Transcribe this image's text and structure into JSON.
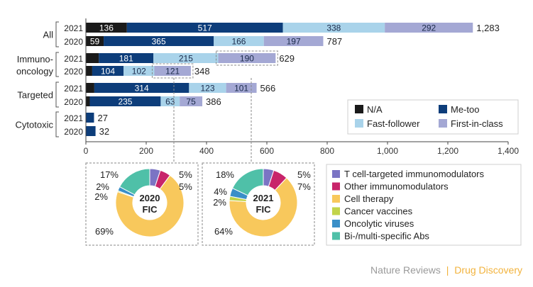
{
  "chart_data": [
    {
      "type": "bar",
      "orientation": "horizontal",
      "stacked": true,
      "groups": [
        {
          "label": "All",
          "rows": [
            {
              "year": "2021",
              "values": [
                136,
                517,
                338,
                292
              ],
              "total": "1,283"
            },
            {
              "year": "2020",
              "values": [
                59,
                365,
                166,
                197
              ],
              "total": "787"
            }
          ]
        },
        {
          "label": "Immuno-\noncology",
          "label_lines": [
            "Immuno-",
            "oncology"
          ],
          "rows": [
            {
              "year": "2021",
              "values": [
                43,
                181,
                215,
                190
              ],
              "total": "629"
            },
            {
              "year": "2020",
              "values": [
                21,
                104,
                102,
                121
              ],
              "total": "348"
            }
          ]
        },
        {
          "label": "Targeted",
          "rows": [
            {
              "year": "2021",
              "values": [
                28,
                314,
                123,
                101
              ],
              "total": "566"
            },
            {
              "year": "2020",
              "values": [
                13,
                235,
                63,
                75
              ],
              "total": "386"
            }
          ]
        },
        {
          "label": "Cytotoxic",
          "rows": [
            {
              "year": "2021",
              "values": [
                0,
                27,
                0,
                0
              ],
              "total": "27"
            },
            {
              "year": "2020",
              "values": [
                0,
                32,
                0,
                0
              ],
              "total": "32"
            }
          ]
        }
      ],
      "segment_labels_shown": [
        [
          [
            "136",
            "517",
            "338",
            "292"
          ],
          [
            "59",
            "365",
            "166",
            "197"
          ]
        ],
        [
          [
            "",
            "181",
            "215",
            "190"
          ],
          [
            "",
            "104",
            "102",
            "121"
          ]
        ],
        [
          [
            "",
            "314",
            "123",
            "101"
          ],
          [
            "",
            "235",
            "63",
            "75"
          ]
        ],
        [
          [
            "",
            "",
            "",
            ""
          ],
          [
            "",
            "",
            "",
            ""
          ]
        ]
      ],
      "series": [
        {
          "name": "N/A",
          "color": "#1a1a1a"
        },
        {
          "name": "Me-too",
          "color": "#0d3d7a"
        },
        {
          "name": "Fast-follower",
          "color": "#a9d3ea"
        },
        {
          "name": "First-in-class",
          "color": "#a4a8d4"
        }
      ],
      "legend_order": [
        "N/A",
        "Me-too",
        "Fast-follower",
        "First-in-class"
      ],
      "xlim": [
        0,
        1400
      ],
      "xticks": [
        0,
        200,
        400,
        600,
        800,
        1000,
        1200,
        1400
      ],
      "xtick_labels": [
        "0",
        "200",
        "400",
        "600",
        "800",
        "1,000",
        "1,200",
        "1,400"
      ],
      "legend_position": "lower-right",
      "grid": false
    },
    {
      "type": "pie",
      "donut": true,
      "center_label": [
        "2020",
        "FIC"
      ],
      "slices": [
        {
          "name": "T cell-targeted immunomodulators",
          "value": 5,
          "label": "5%"
        },
        {
          "name": "Other immunomodulators",
          "value": 5,
          "label": "5%"
        },
        {
          "name": "Cell therapy",
          "value": 69,
          "label": "69%"
        },
        {
          "name": "Cancer vaccines",
          "value": 0.5,
          "label": ""
        },
        {
          "name": "Oncolytic viruses",
          "value": 2,
          "label": "2%"
        },
        {
          "name": "Bi-/multi-specific Abs",
          "value": 17,
          "label": "17%"
        }
      ],
      "extra_label": "2%"
    },
    {
      "type": "pie",
      "donut": true,
      "center_label": [
        "2021",
        "FIC"
      ],
      "slices": [
        {
          "name": "T cell-targeted immunomodulators",
          "value": 5,
          "label": "5%"
        },
        {
          "name": "Other immunomodulators",
          "value": 7,
          "label": "7%"
        },
        {
          "name": "Cell therapy",
          "value": 64,
          "label": "64%"
        },
        {
          "name": "Cancer vaccines",
          "value": 2,
          "label": "2%"
        },
        {
          "name": "Oncolytic viruses",
          "value": 4,
          "label": "4%"
        },
        {
          "name": "Bi-/multi-specific Abs",
          "value": 18,
          "label": "18%"
        }
      ]
    }
  ],
  "donut_legend": [
    {
      "name": "T cell-targeted immunomodulators",
      "color": "#7b74c4"
    },
    {
      "name": "Other immunomodulators",
      "color": "#c8246a"
    },
    {
      "name": "Cell therapy",
      "color": "#f8c85c"
    },
    {
      "name": "Cancer vaccines",
      "color": "#c2d44a"
    },
    {
      "name": "Oncolytic viruses",
      "color": "#3a8fc8"
    },
    {
      "name": "Bi-/multi-specific Abs",
      "color": "#4fc0a8"
    }
  ],
  "credit": {
    "journal": "Nature Reviews",
    "separator": "|",
    "section": "Drug Discovery",
    "journal_color": "#9a9a9a",
    "section_color": "#f2b33d"
  }
}
